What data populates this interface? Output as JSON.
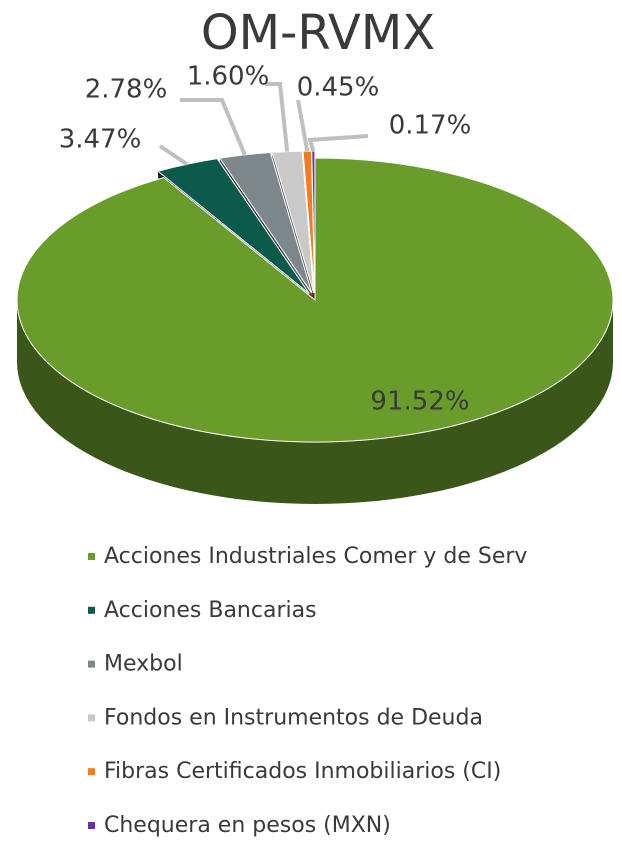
{
  "chart_data": {
    "type": "pie3d",
    "title": "OM-RVMX",
    "categories": [
      "Acciones Industriales Comer y de Serv",
      "Acciones Bancarias",
      "Mexbol",
      "Fondos en Instrumentos de Deuda",
      "Fibras Certificados Inmobiliarios (CI)",
      "Chequera en pesos (MXN)"
    ],
    "values": [
      91.52,
      3.47,
      2.78,
      1.6,
      0.45,
      0.17
    ],
    "value_labels": [
      "91.52%",
      "3.47%",
      "2.78%",
      "1.60%",
      "0.45%",
      "0.17%"
    ],
    "colors": [
      "#6a9c2b",
      "#0b5a4b",
      "#7d878c",
      "#c9c9c9",
      "#f07d1e",
      "#7030a0"
    ],
    "legend": "bottom"
  }
}
